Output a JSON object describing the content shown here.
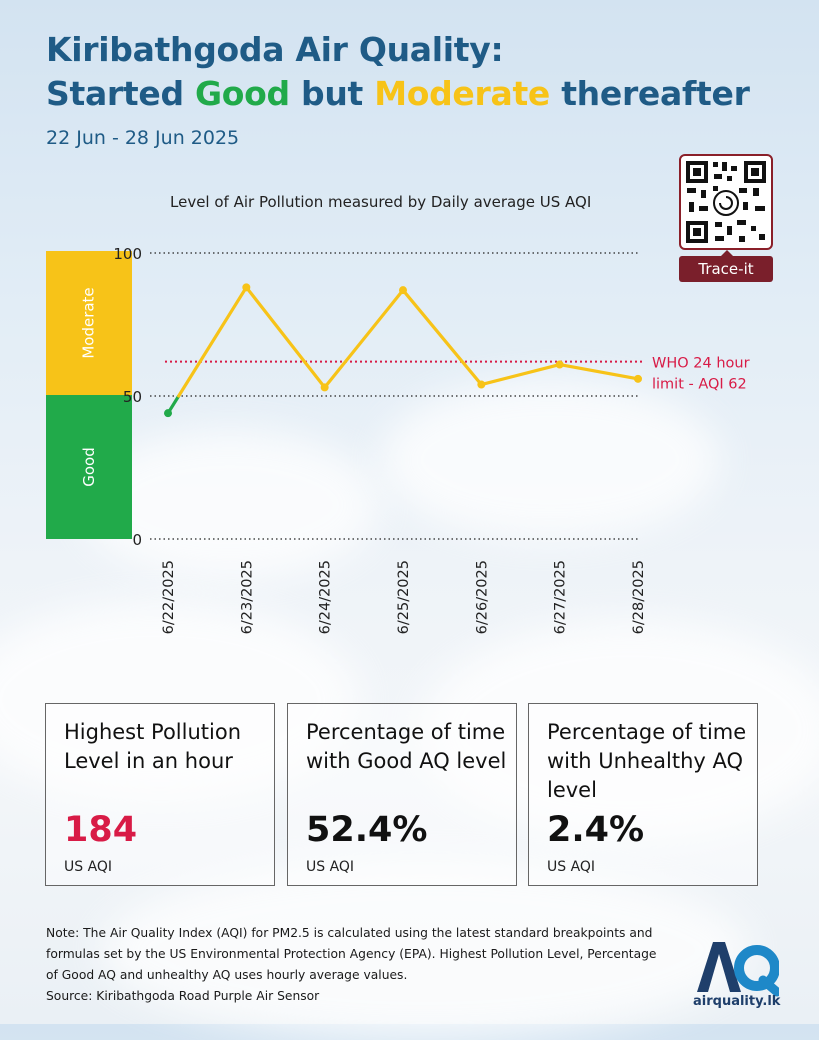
{
  "header": {
    "title_line1": "Kiribathgoda Air Quality:",
    "title_prefix": "Started ",
    "title_good": "Good",
    "title_middle": " but ",
    "title_moderate": "Moderate",
    "title_suffix": " thereafter",
    "date_range": "22 Jun - 28 Jun 2025"
  },
  "qr": {
    "label": "Trace-it"
  },
  "bands": {
    "moderate": "Moderate",
    "good": "Good"
  },
  "chart_data": {
    "type": "line",
    "title": "Level of Air Pollution measured by Daily average US AQI",
    "categories": [
      "6/22/2025",
      "6/23/2025",
      "6/24/2025",
      "6/25/2025",
      "6/26/2025",
      "6/27/2025",
      "6/28/2025"
    ],
    "values": [
      44,
      88,
      53,
      87,
      54,
      61,
      56
    ],
    "ylim": [
      0,
      100
    ],
    "yticks": [
      0,
      50,
      100
    ],
    "good_threshold": 50,
    "reference_line": {
      "value": 62,
      "label_line1": "WHO 24 hour",
      "label_line2": "limit - AQI 62"
    },
    "colors": {
      "good": "#21aa4a",
      "moderate": "#f7c318",
      "reference": "#d81b46"
    }
  },
  "stats": [
    {
      "label": "Highest Pollution Level in an hour",
      "value": "184",
      "unit": "US AQI"
    },
    {
      "label": "Percentage of time with Good AQ level",
      "value": "52.4%",
      "unit": "US AQI"
    },
    {
      "label": "Percentage of time with Unhealthy AQ level",
      "value": "2.4%",
      "unit": "US AQI"
    }
  ],
  "footer": {
    "note": "Note: The Air Quality Index (AQI) for PM2.5 is calculated using the latest standard breakpoints and formulas set by the US Environmental Protection Agency (EPA). Highest Pollution Level, Percentage of Good AQ and unhealthy AQ uses hourly average values.",
    "source": "Source: Kiribathgoda Road Purple Air Sensor",
    "logo_text": "airquality.lk"
  }
}
